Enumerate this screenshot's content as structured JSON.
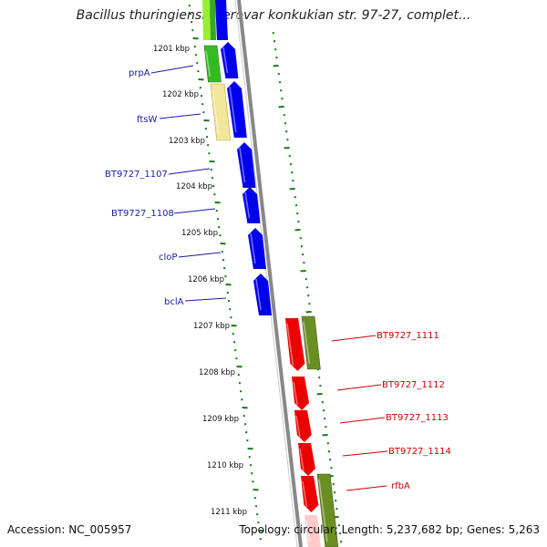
{
  "title": "Bacillus thuringiensis serovar konkukian str. 97-27, complet...",
  "footer": {
    "accession": "Accession: NC_005957",
    "summary": "Topology: circular; Length: 5,237,682 bp; Genes: 5,263"
  },
  "colors": {
    "forward_cds": "#0000ee",
    "reverse_cds": "#ee0000",
    "backbone": "#888888",
    "ticks": "#1a7a1a",
    "forward_label": "#1a1aaa",
    "reverse_label": "#cc0000"
  },
  "kbp_labels": [
    "1201 kbp",
    "1202 kbp",
    "1203 kbp",
    "1204 kbp",
    "1205 kbp",
    "1206 kbp",
    "1207 kbp",
    "1208 kbp",
    "1209 kbp",
    "1210 kbp",
    "1211 kbp"
  ],
  "forward_genes": [
    "prpA",
    "ftsW",
    "BT9727_1107",
    "BT9727_1108",
    "cloP",
    "bclA"
  ],
  "reverse_genes": [
    "BT9727_1111",
    "BT9727_1112",
    "BT9727_1113",
    "BT9727_1114",
    "rfbA"
  ]
}
